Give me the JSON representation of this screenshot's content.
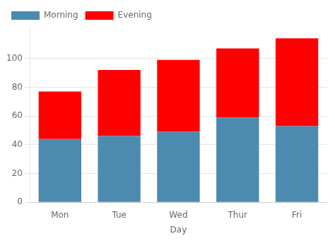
{
  "chart_data": {
    "type": "bar",
    "stacked": true,
    "categories": [
      "Mon",
      "Tue",
      "Wed",
      "Thur",
      "Fri"
    ],
    "series": [
      {
        "name": "Morning",
        "color": "#4c8ab0",
        "values": [
          44,
          46,
          49,
          59,
          53
        ]
      },
      {
        "name": "Evening",
        "color": "#ff0000",
        "values": [
          33,
          46,
          50,
          48,
          61
        ]
      }
    ],
    "xlabel": "Day",
    "ylim": [
      0,
      122
    ],
    "yticks": [
      0,
      20,
      40,
      60,
      80,
      100
    ],
    "grid": true,
    "legend": "upper left"
  }
}
